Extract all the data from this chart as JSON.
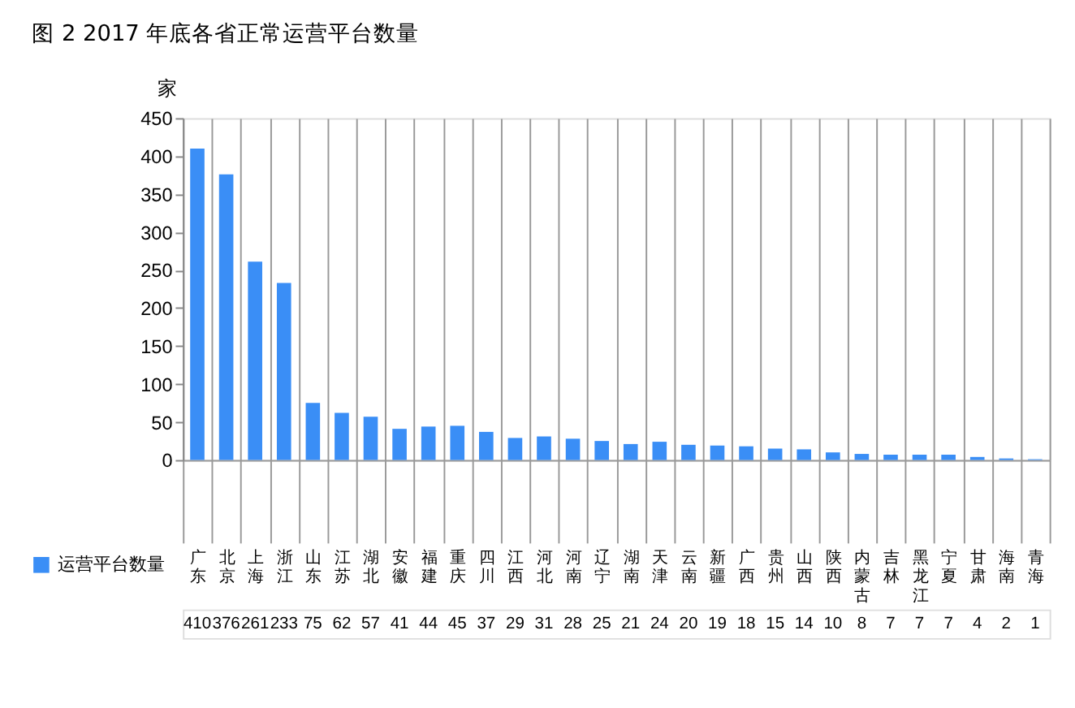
{
  "chart_data": {
    "type": "bar",
    "title": "图 2   2017 年底各省正常运营平台数量",
    "ylabel": "家",
    "categories": [
      "广东",
      "北京",
      "上海",
      "浙江",
      "山东",
      "江苏",
      "湖北",
      "安徽",
      "福建",
      "重庆",
      "四川",
      "江西",
      "河北",
      "河南",
      "辽宁",
      "湖南",
      "天津",
      "云南",
      "新疆",
      "广西",
      "贵州",
      "山西",
      "陕西",
      "内蒙古",
      "吉林",
      "黑龙江",
      "宁夏",
      "甘肃",
      "海南",
      "青海"
    ],
    "series": [
      {
        "name": "运营平台数量",
        "color": "#3a8ef6",
        "values": [
          410,
          376,
          261,
          233,
          75,
          62,
          57,
          41,
          44,
          45,
          37,
          29,
          31,
          28,
          25,
          21,
          24,
          20,
          19,
          18,
          15,
          14,
          10,
          8,
          7,
          7,
          7,
          4,
          2,
          1
        ]
      }
    ],
    "ylim": [
      0,
      450
    ],
    "yticks": [
      0,
      50,
      100,
      150,
      200,
      250,
      300,
      350,
      400,
      450
    ],
    "grid": false,
    "data_labels": true,
    "legend": "bottom left"
  }
}
